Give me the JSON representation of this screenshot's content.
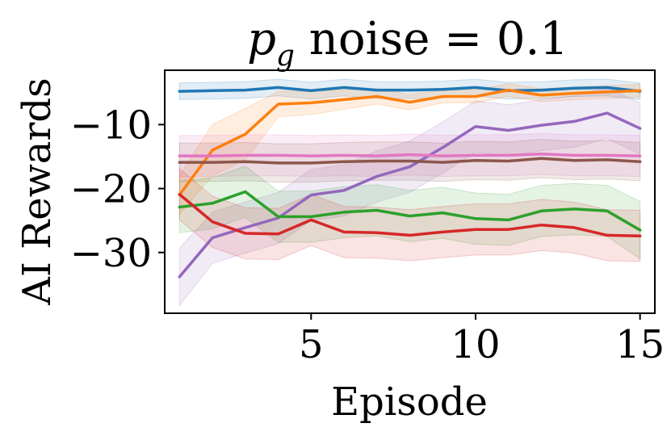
{
  "chart_data": {
    "type": "line",
    "title": {
      "var": "p",
      "sub": "g",
      "rest": " noise = 0.1"
    },
    "xlabel": "Episode",
    "ylabel": "AI Rewards",
    "xlim": [
      0.55,
      15.45
    ],
    "ylim": [
      -39.5,
      -1.5
    ],
    "xticks": [
      5,
      10,
      15
    ],
    "xtick_labels": [
      "5",
      "10",
      "15"
    ],
    "yticks": [
      -10,
      -20,
      -30
    ],
    "ytick_labels": [
      "−10",
      "−20",
      "−30"
    ],
    "grid": false,
    "legend": "none",
    "x": [
      1,
      2,
      3,
      4,
      5,
      6,
      7,
      8,
      9,
      10,
      11,
      12,
      13,
      14,
      15
    ],
    "series": [
      {
        "name": "blue",
        "color": "#1f77b4",
        "values": [
          -4.8,
          -4.7,
          -4.6,
          -4.2,
          -4.7,
          -4.2,
          -4.6,
          -4.6,
          -4.5,
          -4.2,
          -4.7,
          -4.6,
          -4.3,
          -4.2,
          -4.8
        ],
        "band": [
          1.3,
          1.3,
          1.3,
          1.3,
          1.3,
          1.3,
          1.3,
          1.3,
          1.3,
          1.3,
          1.3,
          1.3,
          1.3,
          1.3,
          1.3
        ]
      },
      {
        "name": "orange",
        "color": "#ff7f0e",
        "values": [
          -21.0,
          -14.0,
          -11.5,
          -6.8,
          -6.6,
          -6.1,
          -5.6,
          -6.5,
          -5.6,
          -5.6,
          -4.6,
          -5.4,
          -5.1,
          -4.9,
          -4.7
        ],
        "band": [
          3.0,
          4.0,
          4.0,
          2.0,
          1.8,
          1.5,
          1.2,
          1.2,
          1.0,
          1.0,
          1.0,
          1.0,
          1.0,
          1.0,
          1.0
        ]
      },
      {
        "name": "purple",
        "color": "#9467bd",
        "values": [
          -33.8,
          -27.7,
          -26.1,
          -24.6,
          -21.0,
          -20.3,
          -18.1,
          -16.6,
          -13.6,
          -10.3,
          -10.9,
          -10.1,
          -9.5,
          -8.2,
          -10.6
        ],
        "band": [
          4.5,
          4.0,
          4.0,
          4.0,
          4.0,
          4.0,
          4.0,
          4.0,
          4.0,
          4.0,
          4.0,
          4.0,
          4.0,
          4.0,
          4.0
        ]
      },
      {
        "name": "pink",
        "color": "#e377c2",
        "values": [
          -14.9,
          -14.9,
          -14.8,
          -14.8,
          -14.9,
          -14.8,
          -14.9,
          -14.7,
          -14.9,
          -14.8,
          -14.8,
          -14.6,
          -14.8,
          -14.8,
          -14.9
        ],
        "band": [
          3.2,
          3.2,
          3.2,
          3.2,
          3.2,
          3.2,
          3.2,
          3.2,
          3.2,
          3.2,
          3.2,
          3.2,
          3.2,
          3.2,
          3.2
        ]
      },
      {
        "name": "brown",
        "color": "#8c564b",
        "values": [
          -15.9,
          -15.9,
          -15.8,
          -16.0,
          -16.0,
          -15.8,
          -15.7,
          -15.7,
          -15.9,
          -15.6,
          -15.7,
          -15.3,
          -15.6,
          -15.5,
          -15.8
        ],
        "band": [
          3.0,
          3.0,
          3.0,
          3.0,
          3.0,
          3.0,
          3.0,
          3.0,
          3.0,
          3.0,
          3.0,
          3.0,
          3.0,
          3.0,
          3.0
        ]
      },
      {
        "name": "green",
        "color": "#2ca02c",
        "values": [
          -22.9,
          -22.3,
          -20.5,
          -24.4,
          -24.4,
          -23.7,
          -23.4,
          -24.3,
          -23.8,
          -24.7,
          -24.9,
          -23.5,
          -23.2,
          -23.5,
          -26.5
        ],
        "band": [
          4.0,
          4.0,
          4.0,
          4.0,
          4.0,
          4.0,
          4.0,
          4.0,
          4.0,
          4.0,
          4.0,
          4.0,
          4.0,
          4.0,
          4.5
        ]
      },
      {
        "name": "red",
        "color": "#d62728",
        "values": [
          -20.9,
          -25.2,
          -27.0,
          -27.1,
          -24.9,
          -26.8,
          -26.9,
          -27.3,
          -26.8,
          -26.4,
          -26.4,
          -25.7,
          -26.1,
          -27.3,
          -27.4
        ],
        "band": [
          4.0,
          4.0,
          4.0,
          4.0,
          4.0,
          4.0,
          4.0,
          4.0,
          4.0,
          4.0,
          4.0,
          4.0,
          4.0,
          4.0,
          4.0
        ]
      }
    ]
  }
}
